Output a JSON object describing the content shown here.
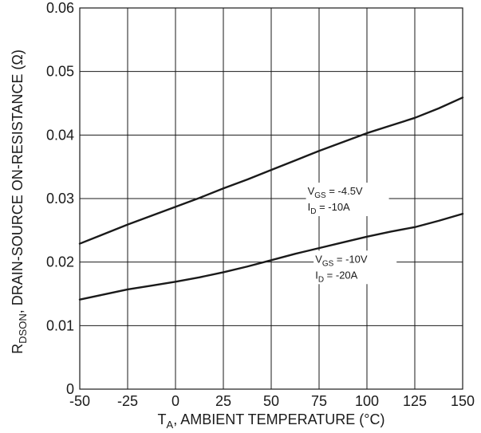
{
  "chart_data": {
    "type": "line",
    "title": "",
    "xlabel": {
      "main": "T",
      "sub": "A",
      "rest": ", AMBIENT TEMPERATURE (°C)"
    },
    "ylabel": {
      "main": "R",
      "sub": "DSON",
      "rest": ", DRAIN-SOURCE ON-RESISTANCE (Ω)"
    },
    "xlim": [
      -50,
      150
    ],
    "ylim": [
      0,
      0.06
    ],
    "xticks": [
      "-50",
      "-25",
      "0",
      "25",
      "50",
      "75",
      "100",
      "125",
      "150"
    ],
    "yticks": [
      "0",
      "0.01",
      "0.02",
      "0.03",
      "0.04",
      "0.05",
      "0.06"
    ],
    "grid": true,
    "series": [
      {
        "x": [
          -50,
          -37.5,
          -25,
          -12.5,
          0,
          12.5,
          25,
          37.5,
          50,
          62.5,
          75,
          87.5,
          100,
          112.5,
          125,
          137.5,
          150
        ],
        "y": [
          0.0229,
          0.0244,
          0.0259,
          0.0273,
          0.0287,
          0.0301,
          0.0316,
          0.033,
          0.0345,
          0.036,
          0.0375,
          0.0389,
          0.0403,
          0.0415,
          0.0427,
          0.0442,
          0.0459
        ]
      },
      {
        "x": [
          -50,
          -37.5,
          -25,
          -12.5,
          0,
          12.5,
          25,
          37.5,
          50,
          62.5,
          75,
          87.5,
          100,
          112.5,
          125,
          137.5,
          150
        ],
        "y": [
          0.0141,
          0.0149,
          0.0157,
          0.0163,
          0.0169,
          0.0176,
          0.0184,
          0.0193,
          0.0203,
          0.0213,
          0.0222,
          0.0231,
          0.024,
          0.0248,
          0.0255,
          0.0265,
          0.0276
        ]
      }
    ],
    "annotations": [
      {
        "x": 69,
        "y": 0.031,
        "vlabel": "V",
        "vsub": "GS",
        "vrest": " = -4.5V",
        "ilabel": "I",
        "isub": "D",
        "irest": " = -10A"
      },
      {
        "x": 73,
        "y": 0.0203,
        "vlabel": "V",
        "vsub": "GS",
        "vrest": " = -10V",
        "ilabel": "I",
        "isub": "D",
        "irest": " = -20A"
      }
    ],
    "colors": {
      "line": "#1a1a1a",
      "grid": "#1a1a1a",
      "frame": "#1a1a1a"
    }
  }
}
